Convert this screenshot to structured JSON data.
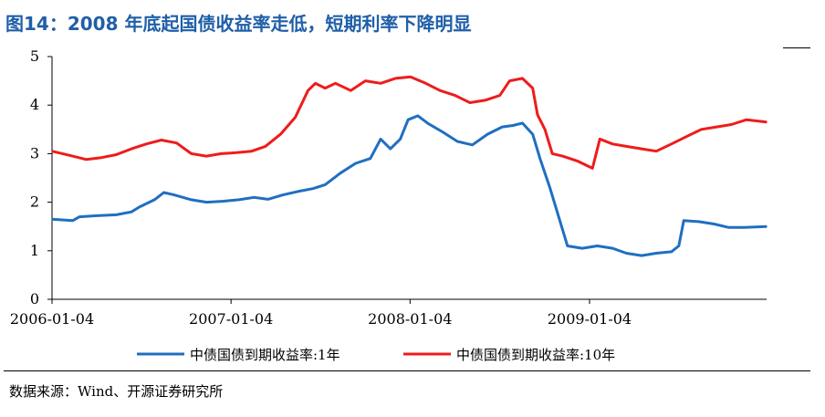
{
  "title": "图14：2008 年底起国债收益率走低，短期利率下降明显",
  "source": "数据来源：Wind、开源证券研究所",
  "chart_data": {
    "type": "line",
    "title": "图14：2008 年底起国债收益率走低，短期利率下降明显",
    "xlabel": "",
    "ylabel": "",
    "ylim": [
      0,
      5
    ],
    "yticks": [
      "0",
      "1",
      "2",
      "3",
      "4",
      "5"
    ],
    "xticks": [
      {
        "label": "2006-01-04",
        "value": "2006-01-04"
      },
      {
        "label": "2007-01-04",
        "value": "2007-01-04"
      },
      {
        "label": "2008-01-04",
        "value": "2008-01-04"
      },
      {
        "label": "2009-01-04",
        "value": "2009-01-04"
      }
    ],
    "xlim": [
      "2006-01-04",
      "2009-12-31"
    ],
    "grid": false,
    "legend": "bottom",
    "series": [
      {
        "name": "中债国债到期收益率:1年",
        "color": "#1f6fc1",
        "points": [
          [
            "2006-01-04",
            1.65
          ],
          [
            "2006-02-15",
            1.62
          ],
          [
            "2006-03-01",
            1.7
          ],
          [
            "2006-04-01",
            1.72
          ],
          [
            "2006-05-15",
            1.74
          ],
          [
            "2006-06-15",
            1.8
          ],
          [
            "2006-07-01",
            1.9
          ],
          [
            "2006-08-01",
            2.05
          ],
          [
            "2006-08-20",
            2.2
          ],
          [
            "2006-09-10",
            2.15
          ],
          [
            "2006-10-15",
            2.05
          ],
          [
            "2006-11-15",
            2.0
          ],
          [
            "2006-12-20",
            2.02
          ],
          [
            "2007-01-20",
            2.05
          ],
          [
            "2007-02-20",
            2.1
          ],
          [
            "2007-03-20",
            2.06
          ],
          [
            "2007-04-20",
            2.15
          ],
          [
            "2007-05-20",
            2.22
          ],
          [
            "2007-06-20",
            2.28
          ],
          [
            "2007-07-15",
            2.36
          ],
          [
            "2007-08-15",
            2.6
          ],
          [
            "2007-09-15",
            2.8
          ],
          [
            "2007-10-15",
            2.9
          ],
          [
            "2007-11-05",
            3.3
          ],
          [
            "2007-11-25",
            3.1
          ],
          [
            "2007-12-15",
            3.3
          ],
          [
            "2007-12-31",
            3.7
          ],
          [
            "2008-01-20",
            3.78
          ],
          [
            "2008-02-10",
            3.62
          ],
          [
            "2008-03-10",
            3.45
          ],
          [
            "2008-04-10",
            3.25
          ],
          [
            "2008-05-10",
            3.18
          ],
          [
            "2008-06-10",
            3.4
          ],
          [
            "2008-07-10",
            3.55
          ],
          [
            "2008-08-01",
            3.58
          ],
          [
            "2008-08-20",
            3.63
          ],
          [
            "2008-09-10",
            3.4
          ],
          [
            "2008-09-25",
            2.9
          ],
          [
            "2008-10-15",
            2.3
          ],
          [
            "2008-11-05",
            1.6
          ],
          [
            "2008-11-20",
            1.1
          ],
          [
            "2008-12-20",
            1.05
          ],
          [
            "2009-01-20",
            1.1
          ],
          [
            "2009-02-20",
            1.05
          ],
          [
            "2009-03-20",
            0.95
          ],
          [
            "2009-04-20",
            0.9
          ],
          [
            "2009-05-20",
            0.95
          ],
          [
            "2009-06-20",
            0.98
          ],
          [
            "2009-07-05",
            1.1
          ],
          [
            "2009-07-15",
            1.62
          ],
          [
            "2009-08-15",
            1.6
          ],
          [
            "2009-09-15",
            1.55
          ],
          [
            "2009-10-15",
            1.48
          ],
          [
            "2009-11-15",
            1.48
          ],
          [
            "2009-12-31",
            1.5
          ]
        ]
      },
      {
        "name": "中债国债到期收益率:10年",
        "color": "#ee1c1c",
        "points": [
          [
            "2006-01-04",
            3.05
          ],
          [
            "2006-02-15",
            2.95
          ],
          [
            "2006-03-15",
            2.88
          ],
          [
            "2006-04-15",
            2.92
          ],
          [
            "2006-05-15",
            2.98
          ],
          [
            "2006-06-15",
            3.1
          ],
          [
            "2006-07-15",
            3.2
          ],
          [
            "2006-08-15",
            3.28
          ],
          [
            "2006-09-15",
            3.22
          ],
          [
            "2006-10-15",
            3.0
          ],
          [
            "2006-11-15",
            2.95
          ],
          [
            "2006-12-15",
            3.0
          ],
          [
            "2007-01-15",
            3.02
          ],
          [
            "2007-02-15",
            3.05
          ],
          [
            "2007-03-15",
            3.15
          ],
          [
            "2007-04-15",
            3.4
          ],
          [
            "2007-05-15",
            3.75
          ],
          [
            "2007-06-10",
            4.3
          ],
          [
            "2007-06-25",
            4.45
          ],
          [
            "2007-07-15",
            4.35
          ],
          [
            "2007-08-05",
            4.45
          ],
          [
            "2007-09-05",
            4.3
          ],
          [
            "2007-10-05",
            4.5
          ],
          [
            "2007-11-05",
            4.45
          ],
          [
            "2007-12-05",
            4.55
          ],
          [
            "2008-01-05",
            4.58
          ],
          [
            "2008-02-05",
            4.45
          ],
          [
            "2008-03-05",
            4.3
          ],
          [
            "2008-04-05",
            4.2
          ],
          [
            "2008-05-05",
            4.05
          ],
          [
            "2008-06-05",
            4.1
          ],
          [
            "2008-07-05",
            4.2
          ],
          [
            "2008-07-25",
            4.5
          ],
          [
            "2008-08-20",
            4.55
          ],
          [
            "2008-09-10",
            4.35
          ],
          [
            "2008-09-20",
            3.8
          ],
          [
            "2008-10-05",
            3.5
          ],
          [
            "2008-10-20",
            3.0
          ],
          [
            "2008-11-10",
            2.95
          ],
          [
            "2008-12-10",
            2.85
          ],
          [
            "2009-01-10",
            2.7
          ],
          [
            "2009-01-25",
            3.3
          ],
          [
            "2009-02-20",
            3.2
          ],
          [
            "2009-03-20",
            3.15
          ],
          [
            "2009-04-20",
            3.1
          ],
          [
            "2009-05-20",
            3.05
          ],
          [
            "2009-06-20",
            3.2
          ],
          [
            "2009-07-20",
            3.35
          ],
          [
            "2009-08-20",
            3.5
          ],
          [
            "2009-09-20",
            3.55
          ],
          [
            "2009-10-20",
            3.6
          ],
          [
            "2009-11-20",
            3.7
          ],
          [
            "2009-12-31",
            3.65
          ]
        ]
      }
    ]
  }
}
